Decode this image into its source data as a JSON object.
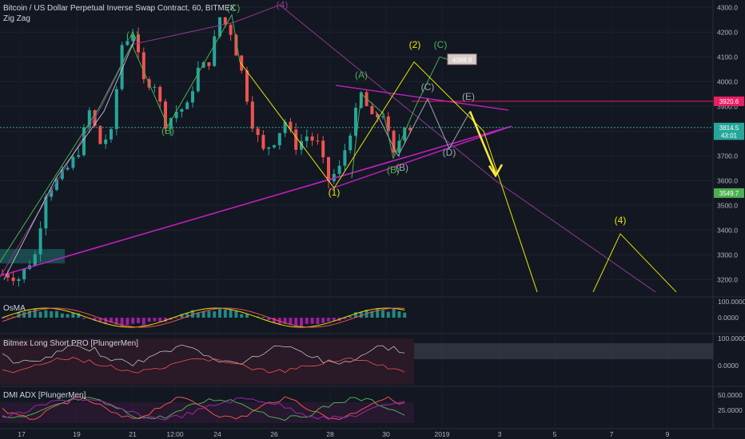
{
  "header": {
    "title": "Bitcoin / US Dollar Perpetual Inverse Swap Contract, 60, BITMEX",
    "indicator": "Zig Zag"
  },
  "colors": {
    "background": "#131722",
    "candle_up": "#26a69a",
    "candle_down": "#ef5350",
    "trendline": "#c020c0",
    "resistance": "#e91e63",
    "wave_green": "#4caf50",
    "wave_yellow": "#e6e600",
    "wave_purple": "#8e3a8e",
    "wave_gray": "#9aa8b0",
    "arrow": "#ffeb3b"
  },
  "price_axis": {
    "ticks": [
      "4300.0",
      "4200.0",
      "4100.0",
      "4000.0",
      "3900.0",
      "3800.0",
      "3700.0",
      "3600.0",
      "3500.0",
      "3400.0",
      "3300.0",
      "3200.0"
    ],
    "tags": [
      {
        "label": "4088.8",
        "value": 4088.8,
        "color": "#e57373"
      },
      {
        "label": "3920.6",
        "value": 3920.6,
        "color": "#e91e63"
      },
      {
        "label": "3814.5",
        "value": 3814.5,
        "color": "#26a69a"
      },
      {
        "label": "43:01",
        "value": 3784,
        "color": "#26a69a"
      },
      {
        "label": "3549.7",
        "value": 3549.7,
        "color": "#4caf50"
      }
    ]
  },
  "time_axis": {
    "ticks": [
      "17",
      "19",
      "21",
      "12:00",
      "24",
      "26",
      "28",
      "30",
      "2019",
      "3",
      "5",
      "7",
      "9"
    ]
  },
  "wave_labels": [
    {
      "text": "(A)",
      "color": "#4caf50"
    },
    {
      "text": "(B)",
      "color": "#4caf50"
    },
    {
      "text": "(C)",
      "color": "#4caf50"
    },
    {
      "text": "(4)",
      "color": "#8e3a8e"
    },
    {
      "text": "(1)",
      "color": "#e6e600"
    },
    {
      "text": "(A)",
      "color": "#4caf50"
    },
    {
      "text": "(B)",
      "color": "#4caf50"
    },
    {
      "text": "(B)",
      "color": "#9aa8b0"
    },
    {
      "text": "(2)",
      "color": "#e6e600"
    },
    {
      "text": "(C)",
      "color": "#4caf50"
    },
    {
      "text": "(C)",
      "color": "#9aa8b0"
    },
    {
      "text": "(D)",
      "color": "#9aa8b0"
    },
    {
      "text": "(E)",
      "color": "#9aa8b0"
    },
    {
      "text": "(4)",
      "color": "#e6e600"
    }
  ],
  "panels": {
    "osma": {
      "title": "OsMA",
      "ticks": [
        "100.0000",
        "0.0000"
      ]
    },
    "long_short": {
      "title": "Bitmex Long Short PRO [PlungerMen]",
      "ticks": [
        "100.0000",
        "0.0000"
      ]
    },
    "dmi": {
      "title": "DMI ADX [PlungerMen]",
      "ticks": [
        "50.0000",
        "25.0000"
      ]
    }
  },
  "chart_data": {
    "type": "candlestick",
    "symbol": "BTCUSD",
    "exchange": "BITMEX",
    "interval": "60",
    "ylim": [
      3130,
      4330
    ],
    "price_path": [
      [
        0,
        3225
      ],
      [
        3,
        3205
      ],
      [
        6,
        3300
      ],
      [
        8,
        3550
      ],
      [
        10,
        3600
      ],
      [
        12,
        3650
      ],
      [
        14,
        3720
      ],
      [
        16,
        3880
      ],
      [
        18,
        3750
      ],
      [
        20,
        3790
      ],
      [
        22,
        4150
      ],
      [
        24,
        4200
      ],
      [
        26,
        4000
      ],
      [
        28,
        3990
      ],
      [
        30,
        3830
      ],
      [
        32,
        3880
      ],
      [
        34,
        3900
      ],
      [
        36,
        4050
      ],
      [
        38,
        4080
      ],
      [
        40,
        4260
      ],
      [
        42,
        4200
      ],
      [
        44,
        4040
      ],
      [
        46,
        3830
      ],
      [
        48,
        3720
      ],
      [
        50,
        3760
      ],
      [
        52,
        3840
      ],
      [
        54,
        3740
      ],
      [
        56,
        3780
      ],
      [
        58,
        3750
      ],
      [
        60,
        3600
      ],
      [
        62,
        3650
      ],
      [
        64,
        3800
      ],
      [
        66,
        3950
      ],
      [
        68,
        3850
      ],
      [
        70,
        3870
      ],
      [
        72,
        3700
      ],
      [
        74,
        3830
      ],
      [
        75,
        3814
      ]
    ],
    "resistance_level": 3920.6,
    "last_price": 3814.5
  }
}
